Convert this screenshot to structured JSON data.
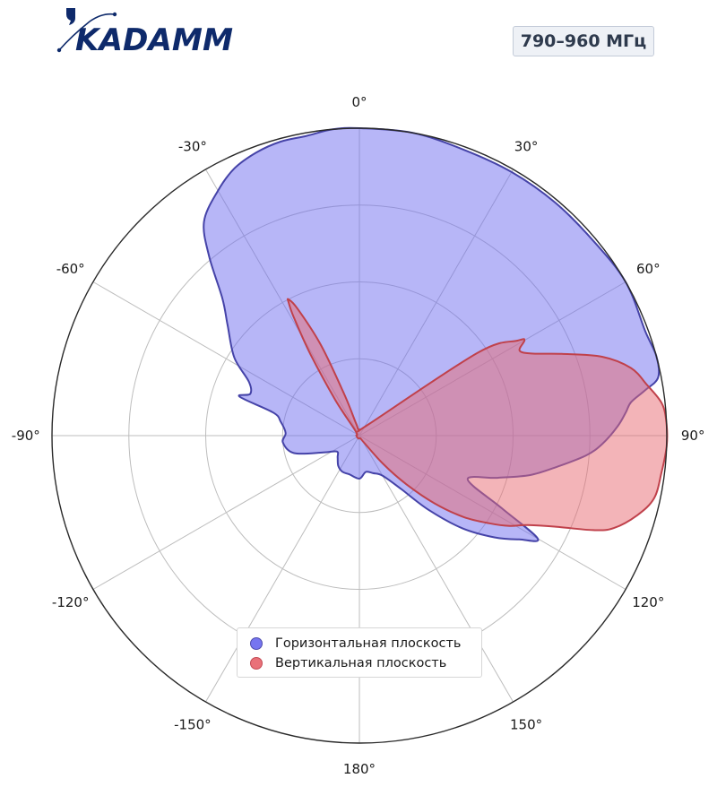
{
  "logo": {
    "text": "KADAMM",
    "color": "#0e2a6b"
  },
  "badge": {
    "label": "790–960 МГц"
  },
  "chart_data": {
    "type": "polar-area",
    "theta_unit": "degrees",
    "theta_zero": "top",
    "theta_direction": "clockwise",
    "tick_labels": [
      "0°",
      "30°",
      "60°",
      "90°",
      "120°",
      "150°",
      "180°",
      "-150°",
      "-120°",
      "-90°",
      "-60°",
      "-30°"
    ],
    "radial_grid": [
      0.25,
      0.5,
      0.75,
      1.0
    ],
    "rlim": [
      0,
      1
    ],
    "grid": true,
    "legend_position": "bottom-center",
    "series": [
      {
        "name": "Горизонтальная плоскость",
        "color": "#6f6ef0",
        "edge": "#4543a8",
        "points": [
          [
            -180,
            0.14
          ],
          [
            -165,
            0.13
          ],
          [
            -155,
            0.13
          ],
          [
            -145,
            0.12
          ],
          [
            -135,
            0.1
          ],
          [
            -125,
            0.09
          ],
          [
            -115,
            0.13
          ],
          [
            -105,
            0.22
          ],
          [
            -95,
            0.25
          ],
          [
            -88,
            0.24
          ],
          [
            -80,
            0.26
          ],
          [
            -75,
            0.29
          ],
          [
            -72,
            0.41
          ],
          [
            -69,
            0.38
          ],
          [
            -64,
            0.4
          ],
          [
            -58,
            0.48
          ],
          [
            -50,
            0.56
          ],
          [
            -45,
            0.63
          ],
          [
            -40,
            0.76
          ],
          [
            -36,
            0.86
          ],
          [
            -30,
            0.92
          ],
          [
            -25,
            0.96
          ],
          [
            -20,
            0.98
          ],
          [
            -15,
            0.99
          ],
          [
            -10,
            0.99
          ],
          [
            -5,
            1.0
          ],
          [
            0,
            1.0
          ],
          [
            10,
            1.0
          ],
          [
            20,
            0.99
          ],
          [
            30,
            0.99
          ],
          [
            40,
            0.99
          ],
          [
            50,
            0.99
          ],
          [
            60,
            1.0
          ],
          [
            70,
            0.99
          ],
          [
            75,
            1.0
          ],
          [
            79,
            0.99
          ],
          [
            81,
            0.94
          ],
          [
            83,
            0.89
          ],
          [
            85,
            0.87
          ],
          [
            88,
            0.84
          ],
          [
            92,
            0.79
          ],
          [
            95,
            0.74
          ],
          [
            99,
            0.65
          ],
          [
            103,
            0.57
          ],
          [
            107,
            0.47
          ],
          [
            112,
            0.38
          ],
          [
            117,
            0.52
          ],
          [
            120,
            0.67
          ],
          [
            123,
            0.62
          ],
          [
            127,
            0.55
          ],
          [
            132,
            0.45
          ],
          [
            137,
            0.33
          ],
          [
            142,
            0.22
          ],
          [
            150,
            0.15
          ],
          [
            160,
            0.13
          ],
          [
            170,
            0.12
          ]
        ]
      },
      {
        "name": "Вертикальная плоскость",
        "color": "#e86a72",
        "edge": "#c0414b",
        "points": [
          [
            -160,
            0.01
          ],
          [
            -90,
            0.01
          ],
          [
            -40,
            0.02
          ],
          [
            -34,
            0.14
          ],
          [
            -31,
            0.31
          ],
          [
            -29,
            0.44
          ],
          [
            -28,
            0.49
          ],
          [
            -27.5,
            0.5
          ],
          [
            -26,
            0.46
          ],
          [
            -23,
            0.32
          ],
          [
            -20,
            0.14
          ],
          [
            -15,
            0.04
          ],
          [
            0,
            0.02
          ],
          [
            40,
            0.05
          ],
          [
            55,
            0.47
          ],
          [
            59,
            0.6
          ],
          [
            60,
            0.62
          ],
          [
            62,
            0.59
          ],
          [
            64.5,
            0.62
          ],
          [
            68,
            0.71
          ],
          [
            72,
            0.83
          ],
          [
            76,
            0.91
          ],
          [
            80,
            0.95
          ],
          [
            84,
            0.99
          ],
          [
            88,
            1.0
          ],
          [
            92,
            1.0
          ],
          [
            97,
            0.99
          ],
          [
            102,
            0.98
          ],
          [
            106,
            0.94
          ],
          [
            110,
            0.88
          ],
          [
            112,
            0.82
          ],
          [
            115,
            0.7
          ],
          [
            118,
            0.62
          ],
          [
            121,
            0.57
          ],
          [
            124,
            0.51
          ],
          [
            128,
            0.43
          ],
          [
            132,
            0.33
          ],
          [
            136,
            0.22
          ],
          [
            140,
            0.12
          ],
          [
            146,
            0.03
          ],
          [
            160,
            0.01
          ]
        ]
      }
    ]
  }
}
